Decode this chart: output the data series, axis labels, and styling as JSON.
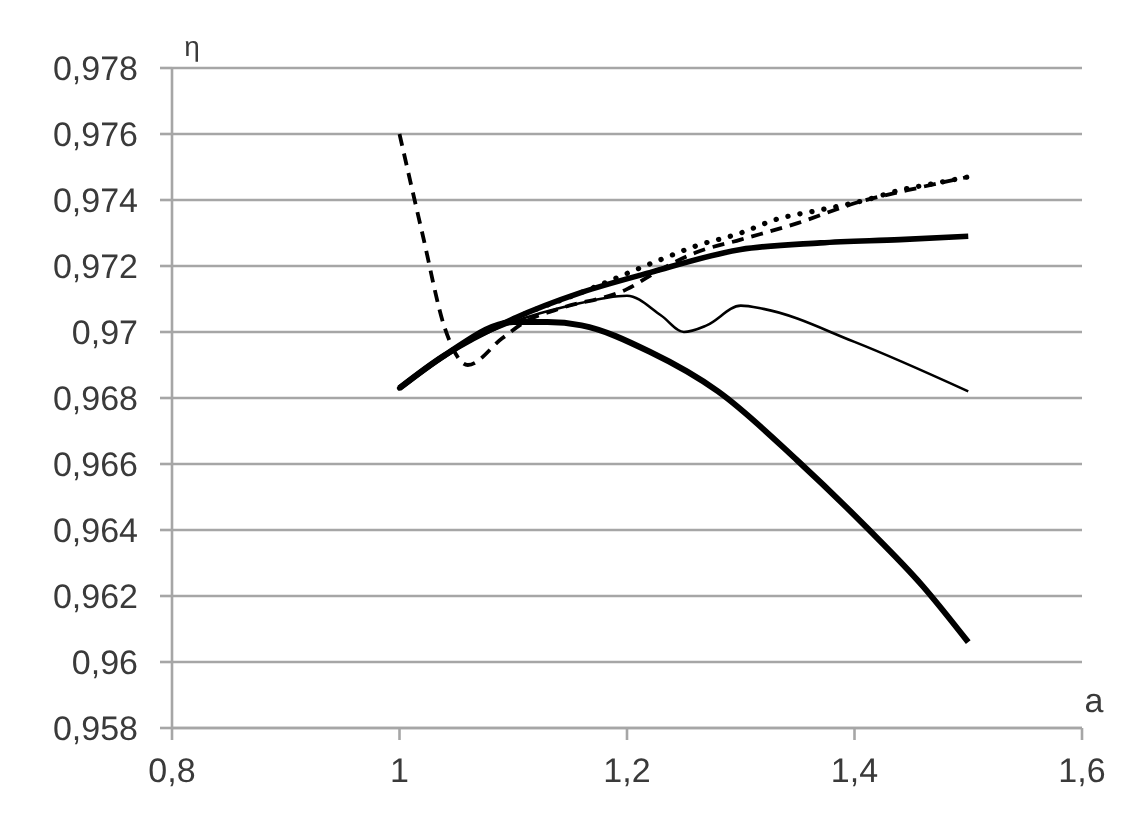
{
  "chart_data": {
    "type": "line",
    "xlabel": "a",
    "ylabel": "η",
    "xlim": [
      0.8,
      1.6
    ],
    "xticks": [
      {
        "value": 0.8,
        "label": "0,8"
      },
      1,
      {
        "value": 1.2,
        "label": "1,2"
      },
      {
        "value": 1.4,
        "label": "1,4"
      },
      {
        "value": 1.6,
        "label": "1,6"
      }
    ],
    "ylim": [
      0.958,
      0.978
    ],
    "yticks": [
      {
        "value": 0.958,
        "label": "0,958"
      },
      {
        "value": 0.96,
        "label": "0,96"
      },
      {
        "value": 0.962,
        "label": "0,962"
      },
      {
        "value": 0.964,
        "label": "0,964"
      },
      {
        "value": 0.966,
        "label": "0,966"
      },
      {
        "value": 0.968,
        "label": "0,968"
      },
      {
        "value": 0.97,
        "label": "0,97"
      },
      {
        "value": 0.972,
        "label": "0,972"
      },
      {
        "value": 0.974,
        "label": "0,974"
      },
      {
        "value": 0.976,
        "label": "0,976"
      },
      {
        "value": 0.978,
        "label": "0,978"
      }
    ],
    "grid": "y",
    "series": [
      {
        "color": "#000000",
        "line_style": "solid",
        "x": [
          1,
          1.04,
          1.1,
          1.16,
          1.22,
          1.3,
          1.37,
          1.44,
          1.5
        ],
        "values": [
          0.9683,
          0.9693,
          0.9704,
          0.9712,
          0.9718,
          0.9725,
          0.9727,
          0.9728,
          0.9729
        ]
      },
      {
        "color": "#000000",
        "line_style": "solid",
        "x": [
          1,
          1.04,
          1.1,
          1.13,
          1.16,
          1.22,
          1.28,
          1.35,
          1.41,
          1.46,
          1.5
        ],
        "values": [
          0.9683,
          0.9693,
          0.9703,
          0.9703,
          0.9702,
          0.9694,
          0.9682,
          0.9661,
          0.9641,
          0.9623,
          0.9606
        ]
      },
      {
        "color": "#000000",
        "line_style": "solid",
        "x": [
          1,
          1.04,
          1.1,
          1.15,
          1.2,
          1.23,
          1.25,
          1.27,
          1.3,
          1.32,
          1.4,
          1.5
        ],
        "values": [
          0.9683,
          0.9693,
          0.9703,
          0.9708,
          0.9711,
          0.9705,
          0.97,
          0.9702,
          0.9708,
          0.9707,
          0.9697,
          0.9682
        ]
      },
      {
        "color": "#000000",
        "line_style": "dashed",
        "x": [
          1,
          1.02,
          1.04,
          1.06,
          1.09,
          1.11,
          1.14,
          1.2,
          1.23,
          1.26,
          1.3,
          1.35,
          1.4,
          1.46,
          1.5
        ],
        "values": [
          0.976,
          0.973,
          0.9701,
          0.969,
          0.9698,
          0.9703,
          0.9707,
          0.9713,
          0.9719,
          0.9724,
          0.9728,
          0.9733,
          0.9739,
          0.9744,
          0.9747
        ]
      },
      {
        "color": "#000000",
        "line_style": "dotted",
        "x": [
          1,
          1.04,
          1.1,
          1.16,
          1.23,
          1.26,
          1.3,
          1.33,
          1.37,
          1.41,
          1.44,
          1.47,
          1.5
        ],
        "values": [
          0.9683,
          0.9693,
          0.9704,
          0.9712,
          0.9722,
          0.9726,
          0.973,
          0.9734,
          0.9737,
          0.974,
          0.9743,
          0.9745,
          0.9747
        ]
      }
    ]
  }
}
